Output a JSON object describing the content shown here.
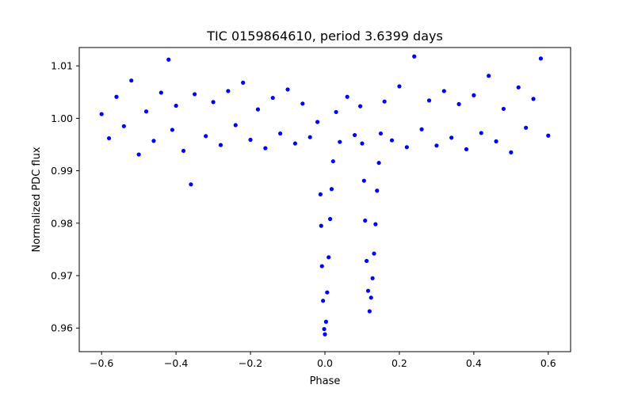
{
  "chart_data": {
    "type": "scatter",
    "title": "TIC 0159864610, period 3.6399 days",
    "xlabel": "Phase",
    "ylabel": "Normalized PDC flux",
    "xlim": [
      -0.66,
      0.66
    ],
    "ylim": [
      0.9555,
      1.0135
    ],
    "xticks": [
      -0.6,
      -0.4,
      -0.2,
      0.0,
      0.2,
      0.4,
      0.6
    ],
    "xtick_labels": [
      "−0.6",
      "−0.4",
      "−0.2",
      "0.0",
      "0.2",
      "0.4",
      "0.6"
    ],
    "yticks": [
      0.96,
      0.97,
      0.98,
      0.99,
      1.0,
      1.01
    ],
    "ytick_labels": [
      "0.96",
      "0.97",
      "0.98",
      "0.99",
      "1.00",
      "1.01"
    ],
    "grid": false,
    "marker_color": "#0000ff",
    "series": [
      {
        "points": [
          [
            -0.6,
            1.0008
          ],
          [
            -0.58,
            0.9962
          ],
          [
            -0.56,
            1.0041
          ],
          [
            -0.54,
            0.9985
          ],
          [
            -0.52,
            1.0072
          ],
          [
            -0.5,
            0.9931
          ],
          [
            -0.48,
            1.0013
          ],
          [
            -0.46,
            0.9957
          ],
          [
            -0.44,
            1.0049
          ],
          [
            -0.42,
            1.0112
          ],
          [
            -0.41,
            0.9978
          ],
          [
            -0.4,
            1.0024
          ],
          [
            -0.38,
            0.9938
          ],
          [
            -0.36,
            0.9874
          ],
          [
            -0.35,
            1.0046
          ],
          [
            -0.32,
            0.9966
          ],
          [
            -0.3,
            1.0031
          ],
          [
            -0.28,
            0.9949
          ],
          [
            -0.26,
            1.0052
          ],
          [
            -0.24,
            0.9987
          ],
          [
            -0.22,
            1.0068
          ],
          [
            -0.2,
            0.9959
          ],
          [
            -0.18,
            1.0017
          ],
          [
            -0.16,
            0.9943
          ],
          [
            -0.14,
            1.0039
          ],
          [
            -0.12,
            0.9971
          ],
          [
            -0.1,
            1.0055
          ],
          [
            -0.08,
            0.9952
          ],
          [
            -0.06,
            1.0028
          ],
          [
            -0.04,
            0.9964
          ],
          [
            -0.02,
            0.9993
          ],
          [
            -0.012,
            0.9855
          ],
          [
            -0.01,
            0.9795
          ],
          [
            -0.008,
            0.9718
          ],
          [
            -0.005,
            0.9652
          ],
          [
            -0.002,
            0.9598
          ],
          [
            0.0,
            0.9588
          ],
          [
            0.003,
            0.9612
          ],
          [
            0.006,
            0.9668
          ],
          [
            0.01,
            0.9735
          ],
          [
            0.014,
            0.9808
          ],
          [
            0.018,
            0.9865
          ],
          [
            0.022,
            0.9918
          ],
          [
            0.03,
            1.0012
          ],
          [
            0.04,
            0.9955
          ],
          [
            0.06,
            1.0041
          ],
          [
            0.08,
            0.9968
          ],
          [
            0.095,
            1.0023
          ],
          [
            0.1,
            0.9952
          ],
          [
            0.105,
            0.9881
          ],
          [
            0.108,
            0.9805
          ],
          [
            0.112,
            0.9728
          ],
          [
            0.116,
            0.9671
          ],
          [
            0.12,
            0.9632
          ],
          [
            0.124,
            0.9658
          ],
          [
            0.128,
            0.9695
          ],
          [
            0.132,
            0.9742
          ],
          [
            0.136,
            0.9798
          ],
          [
            0.14,
            0.9862
          ],
          [
            0.145,
            0.9915
          ],
          [
            0.15,
            0.9971
          ],
          [
            0.16,
            1.0032
          ],
          [
            0.18,
            0.9958
          ],
          [
            0.2,
            1.0061
          ],
          [
            0.22,
            0.9945
          ],
          [
            0.24,
            1.0118
          ],
          [
            0.26,
            0.9979
          ],
          [
            0.28,
            1.0034
          ],
          [
            0.3,
            0.9948
          ],
          [
            0.32,
            1.0052
          ],
          [
            0.34,
            0.9963
          ],
          [
            0.36,
            1.0027
          ],
          [
            0.38,
            0.9941
          ],
          [
            0.4,
            1.0044
          ],
          [
            0.42,
            0.9972
          ],
          [
            0.44,
            1.0081
          ],
          [
            0.46,
            0.9956
          ],
          [
            0.48,
            1.0018
          ],
          [
            0.5,
            0.9935
          ],
          [
            0.52,
            1.0059
          ],
          [
            0.54,
            0.9982
          ],
          [
            0.56,
            1.0037
          ],
          [
            0.58,
            1.0114
          ],
          [
            0.6,
            0.9967
          ]
        ]
      }
    ]
  }
}
